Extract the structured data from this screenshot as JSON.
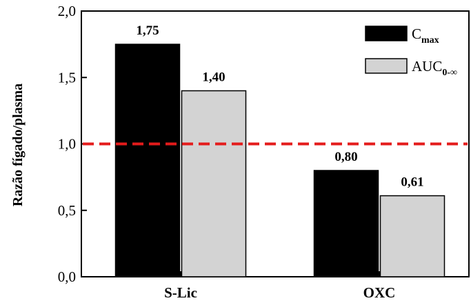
{
  "chart_data": {
    "type": "bar",
    "categories": [
      "S-Lic",
      "OXC"
    ],
    "series": [
      {
        "name": "Cmax",
        "name_main": "C",
        "name_sub": "max",
        "color": "#000000",
        "values": [
          1.75,
          0.8
        ],
        "labels": [
          "1,75",
          "0,80"
        ]
      },
      {
        "name": "AUC0-∞",
        "name_main": "AUC",
        "name_sub": "0-∞",
        "color": "#d3d3d3",
        "values": [
          1.4,
          0.61
        ],
        "labels": [
          "1,40",
          "0,61"
        ]
      }
    ],
    "ylabel": "Razão fígado/plasma",
    "ylim": [
      0,
      2.0
    ],
    "yticks": [
      0,
      0.5,
      1.0,
      1.5,
      2.0
    ],
    "ytick_labels": [
      "0,0",
      "0,5",
      "1,0",
      "1,5",
      "2,0"
    ],
    "reference_line": {
      "y": 1.0,
      "color": "#e41b1b",
      "style": "dashed"
    },
    "legend_position": "top-right",
    "grid": false
  }
}
